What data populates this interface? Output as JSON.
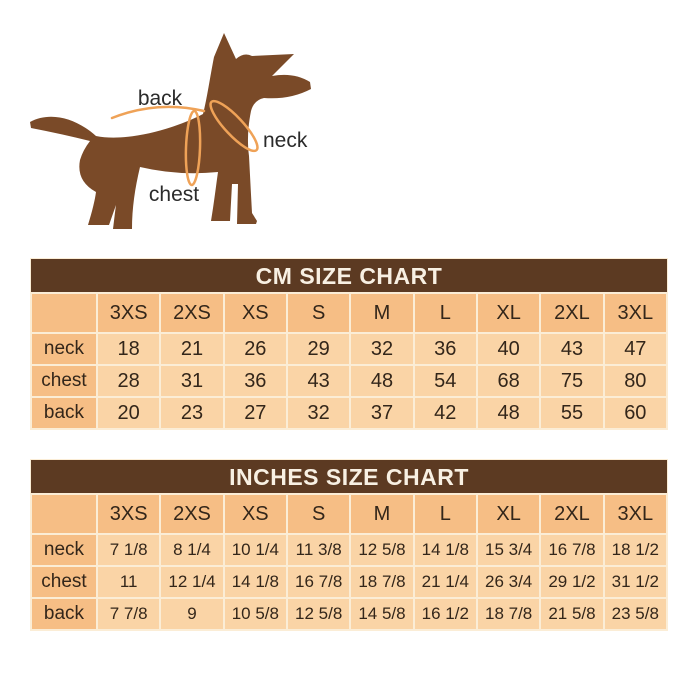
{
  "diagram": {
    "back_label": "back",
    "neck_label": "neck",
    "chest_label": "chest",
    "dog_color": "#7A4A28",
    "measure_line_color": "#EFA257",
    "label_text_color": "#2b2b2b"
  },
  "colors": {
    "title_bar_bg": "#5C3A22",
    "title_text": "#F8F0E3",
    "header_cell_bg": "#F6BE85",
    "data_cell_bg": "#FAD4A6",
    "grid_line": "#FBEDD6",
    "cell_text": "#33261A",
    "page_bg": "#FFFFFF"
  },
  "chart_data": [
    {
      "type": "table",
      "title": "CM SIZE CHART",
      "columns": [
        "3XS",
        "2XS",
        "XS",
        "S",
        "M",
        "L",
        "XL",
        "2XL",
        "3XL"
      ],
      "rows": [
        {
          "label": "neck",
          "values": [
            "18",
            "21",
            "26",
            "29",
            "32",
            "36",
            "40",
            "43",
            "47"
          ]
        },
        {
          "label": "chest",
          "values": [
            "28",
            "31",
            "36",
            "43",
            "48",
            "54",
            "68",
            "75",
            "80"
          ]
        },
        {
          "label": "back",
          "values": [
            "20",
            "23",
            "27",
            "32",
            "37",
            "42",
            "48",
            "55",
            "60"
          ]
        }
      ]
    },
    {
      "type": "table",
      "title": "INCHES SIZE CHART",
      "columns": [
        "3XS",
        "2XS",
        "XS",
        "S",
        "M",
        "L",
        "XL",
        "2XL",
        "3XL"
      ],
      "rows": [
        {
          "label": "neck",
          "values": [
            "7 1/8",
            "8 1/4",
            "10 1/4",
            "11 3/8",
            "12 5/8",
            "14 1/8",
            "15 3/4",
            "16 7/8",
            "18 1/2"
          ]
        },
        {
          "label": "chest",
          "values": [
            "11",
            "12 1/4",
            "14 1/8",
            "16 7/8",
            "18 7/8",
            "21 1/4",
            "26 3/4",
            "29 1/2",
            "31 1/2"
          ]
        },
        {
          "label": "back",
          "values": [
            "7 7/8",
            "9",
            "10 5/8",
            "12 5/8",
            "14 5/8",
            "16 1/2",
            "18 7/8",
            "21 5/8",
            "23 5/8"
          ]
        }
      ]
    }
  ]
}
